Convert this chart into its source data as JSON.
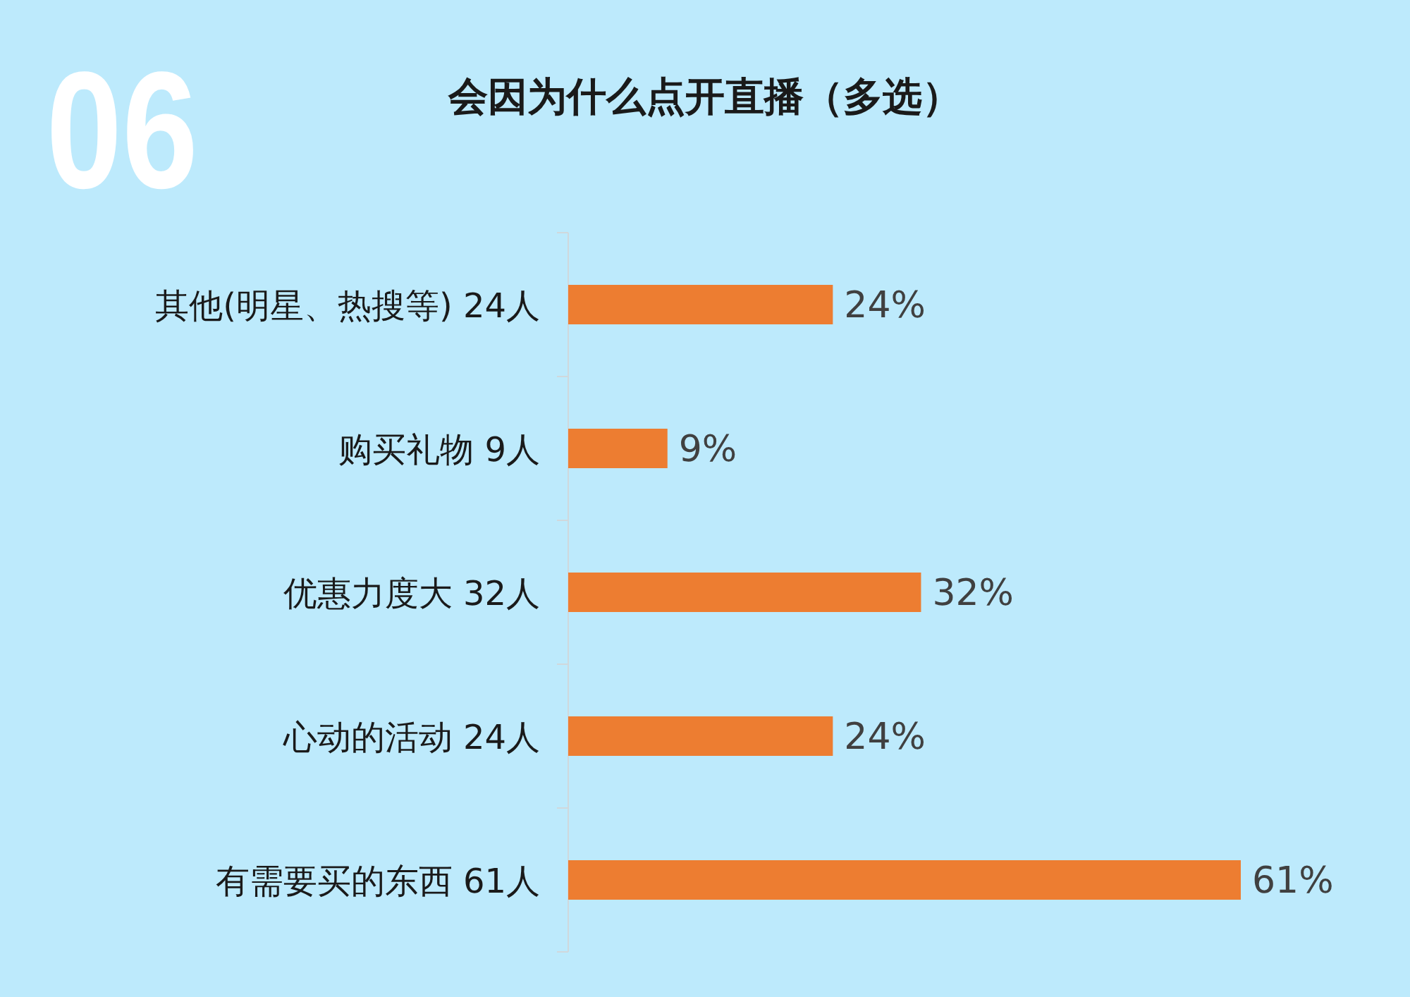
{
  "chart_data": {
    "type": "bar",
    "orientation": "horizontal",
    "title": "会因为什么点开直播（多选）",
    "annotations": [
      "06"
    ],
    "categories": [
      "其他(明星、热搜等) 24人",
      "购买礼物 9人",
      "优惠力度大 32人",
      "心动的活动 24人",
      "有需要买的东西 61人"
    ],
    "values": [
      24,
      9,
      32,
      24,
      61
    ],
    "value_labels": [
      "24%",
      "9%",
      "32%",
      "24%",
      "61%"
    ],
    "color": "#ed7d31"
  }
}
